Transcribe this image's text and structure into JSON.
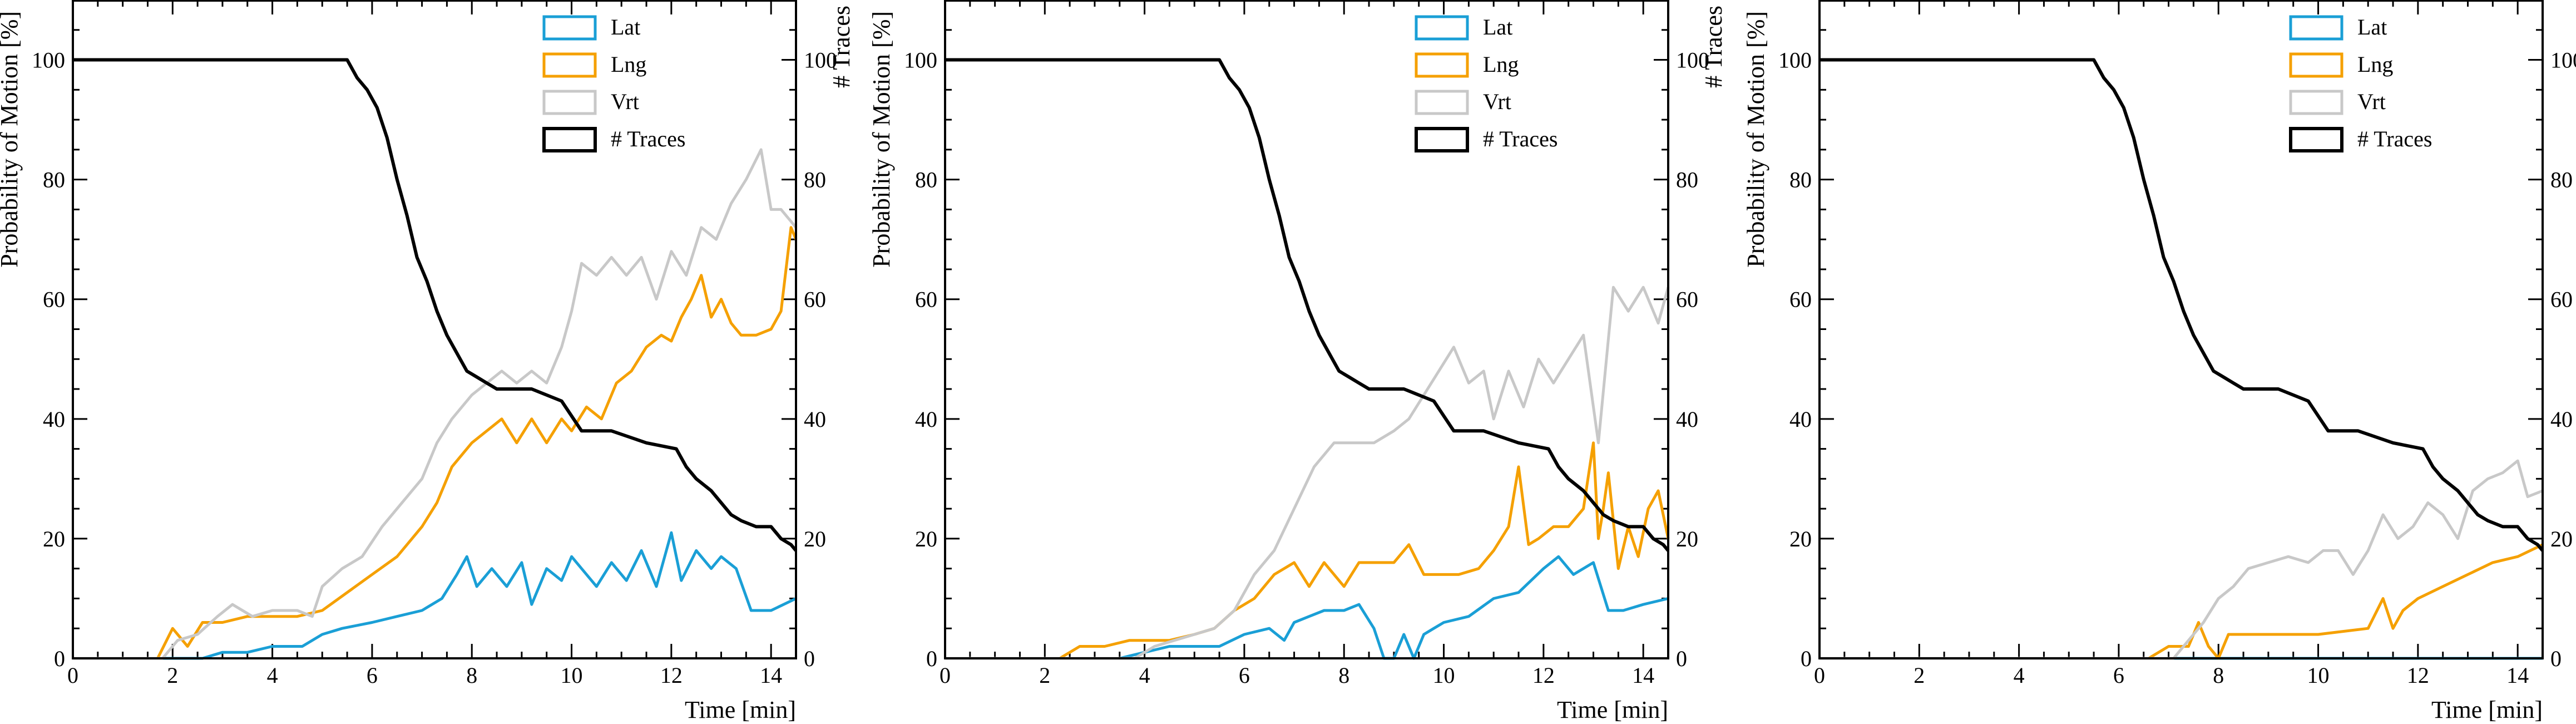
{
  "colors": {
    "Lat": "#1a9fd6",
    "Lng": "#f5a000",
    "Vrt": "#c8c8c8",
    "# Traces": "#000000"
  },
  "chart_data": [
    {
      "type": "line",
      "xlabel": "Time [min]",
      "ylabel": "Probability of Motion [%]",
      "y2label": "# Traces",
      "xlim": [
        0,
        14.5
      ],
      "ylim": [
        0,
        110
      ],
      "y2lim": [
        0,
        110
      ],
      "xticks": [
        "0",
        "2",
        "4",
        "6",
        "8",
        "10",
        "12",
        "14"
      ],
      "yticks": [
        "0",
        "20",
        "40",
        "60",
        "80",
        "100"
      ],
      "y2ticks": [
        "0",
        "20",
        "40",
        "60",
        "80",
        "100"
      ],
      "legend": "top-right",
      "series": [
        {
          "name": "Lat",
          "color": "#1a9fd6",
          "x": [
            0,
            2.6,
            3,
            3.5,
            4,
            4.6,
            5,
            5.4,
            6,
            6.5,
            7,
            7.4,
            7.7,
            7.9,
            8.1,
            8.4,
            8.7,
            9,
            9.2,
            9.5,
            9.8,
            10,
            10.2,
            10.5,
            10.8,
            11.1,
            11.4,
            11.7,
            12,
            12.2,
            12.5,
            12.8,
            13,
            13.3,
            13.6,
            14,
            14.5
          ],
          "values": [
            0,
            0,
            1,
            1,
            2,
            2,
            4,
            5,
            6,
            7,
            8,
            10,
            14,
            17,
            12,
            15,
            12,
            16,
            9,
            15,
            13,
            17,
            15,
            12,
            16,
            13,
            18,
            12,
            21,
            13,
            18,
            15,
            17,
            15,
            8,
            8,
            10
          ]
        },
        {
          "name": "Lng",
          "color": "#f5a000",
          "x": [
            0,
            1.7,
            2,
            2.3,
            2.6,
            3,
            3.5,
            4,
            4.5,
            5,
            5.5,
            6,
            6.5,
            7,
            7.3,
            7.6,
            8,
            8.3,
            8.6,
            8.9,
            9.2,
            9.5,
            9.8,
            10,
            10.3,
            10.6,
            10.9,
            11.2,
            11.5,
            11.8,
            12,
            12.2,
            12.4,
            12.6,
            12.8,
            13,
            13.2,
            13.4,
            13.7,
            14,
            14.2,
            14.4,
            14.5
          ],
          "values": [
            0,
            0,
            5,
            2,
            6,
            6,
            7,
            7,
            7,
            8,
            11,
            14,
            17,
            22,
            26,
            32,
            36,
            38,
            40,
            36,
            40,
            36,
            40,
            38,
            42,
            40,
            46,
            48,
            52,
            54,
            53,
            57,
            60,
            64,
            57,
            60,
            56,
            54,
            54,
            55,
            58,
            72,
            70
          ]
        },
        {
          "name": "Vrt",
          "color": "#c8c8c8",
          "x": [
            0,
            1.8,
            2.1,
            2.5,
            2.9,
            3.2,
            3.6,
            4,
            4.5,
            4.8,
            5,
            5.4,
            5.8,
            6.2,
            6.6,
            7,
            7.3,
            7.6,
            8,
            8.3,
            8.6,
            8.9,
            9.2,
            9.5,
            9.8,
            10,
            10.2,
            10.5,
            10.8,
            11.1,
            11.4,
            11.7,
            12,
            12.3,
            12.6,
            12.9,
            13.2,
            13.5,
            13.8,
            14,
            14.2,
            14.5
          ],
          "values": [
            0,
            0,
            3,
            4,
            7,
            9,
            7,
            8,
            8,
            7,
            12,
            15,
            17,
            22,
            26,
            30,
            36,
            40,
            44,
            46,
            48,
            46,
            48,
            46,
            52,
            58,
            66,
            64,
            67,
            64,
            67,
            60,
            68,
            64,
            72,
            70,
            76,
            80,
            85,
            75,
            75,
            72
          ]
        },
        {
          "name": "# Traces",
          "color": "#000000",
          "x": [
            0,
            5.5,
            5.7,
            5.9,
            6.1,
            6.3,
            6.5,
            6.7,
            6.9,
            7.1,
            7.3,
            7.5,
            7.7,
            7.9,
            8.1,
            8.3,
            8.5,
            9.2,
            9.8,
            10.2,
            10.8,
            11.5,
            12.1,
            12.3,
            12.5,
            12.8,
            13,
            13.2,
            13.4,
            13.7,
            14,
            14.2,
            14.4,
            14.5
          ],
          "values": [
            100,
            100,
            97,
            95,
            92,
            87,
            80,
            74,
            67,
            63,
            58,
            54,
            51,
            48,
            47,
            46,
            45,
            45,
            43,
            38,
            38,
            36,
            35,
            32,
            30,
            28,
            26,
            24,
            23,
            22,
            22,
            20,
            19,
            18
          ]
        }
      ]
    },
    {
      "type": "line",
      "xlabel": "Time [min]",
      "ylabel": "Probability of Motion [%]",
      "y2label": "# Traces",
      "xlim": [
        0,
        14.5
      ],
      "ylim": [
        0,
        110
      ],
      "y2lim": [
        0,
        110
      ],
      "xticks": [
        "0",
        "2",
        "4",
        "6",
        "8",
        "10",
        "12",
        "14"
      ],
      "yticks": [
        "0",
        "20",
        "40",
        "60",
        "80",
        "100"
      ],
      "y2ticks": [
        "0",
        "20",
        "40",
        "60",
        "80",
        "100"
      ],
      "legend": "top-right",
      "series": [
        {
          "name": "Lat",
          "color": "#1a9fd6",
          "x": [
            0,
            3.5,
            4,
            4.5,
            5,
            5.5,
            6,
            6.5,
            6.8,
            7,
            7.3,
            7.6,
            8,
            8.3,
            8.6,
            8.8,
            9,
            9.2,
            9.4,
            9.6,
            9.8,
            10,
            10.5,
            11,
            11.5,
            12,
            12.3,
            12.6,
            13,
            13.3,
            13.6,
            14,
            14.5
          ],
          "values": [
            0,
            0,
            1,
            2,
            2,
            2,
            4,
            5,
            3,
            6,
            7,
            8,
            8,
            9,
            5,
            0,
            0,
            4,
            0,
            4,
            5,
            6,
            7,
            10,
            11,
            15,
            17,
            14,
            16,
            8,
            8,
            9,
            10
          ]
        },
        {
          "name": "Lng",
          "color": "#f5a000",
          "x": [
            0,
            2.3,
            2.7,
            3.2,
            3.7,
            4,
            4.5,
            5,
            5.4,
            5.8,
            6.2,
            6.6,
            7,
            7.3,
            7.6,
            8,
            8.3,
            8.7,
            9,
            9.3,
            9.6,
            10,
            10.3,
            10.7,
            11,
            11.3,
            11.5,
            11.7,
            11.9,
            12.2,
            12.5,
            12.8,
            13,
            13.1,
            13.2,
            13.3,
            13.5,
            13.7,
            13.9,
            14.1,
            14.3,
            14.5
          ],
          "values": [
            0,
            0,
            2,
            2,
            3,
            3,
            3,
            4,
            5,
            8,
            10,
            14,
            16,
            12,
            16,
            12,
            16,
            16,
            16,
            19,
            14,
            14,
            14,
            15,
            18,
            22,
            32,
            19,
            20,
            22,
            22,
            25,
            36,
            20,
            25,
            31,
            15,
            22,
            17,
            25,
            28,
            20
          ]
        },
        {
          "name": "Vrt",
          "color": "#c8c8c8",
          "x": [
            0,
            3.8,
            4.2,
            4.6,
            5,
            5.4,
            5.8,
            6.2,
            6.6,
            7,
            7.4,
            7.8,
            8.2,
            8.6,
            9,
            9.3,
            9.6,
            9.9,
            10.2,
            10.5,
            10.8,
            11,
            11.3,
            11.6,
            11.9,
            12.2,
            12.5,
            12.8,
            13.1,
            13.4,
            13.7,
            14,
            14.3,
            14.5
          ],
          "values": [
            0,
            0,
            2,
            3,
            4,
            5,
            8,
            14,
            18,
            25,
            32,
            36,
            36,
            36,
            38,
            40,
            44,
            48,
            52,
            46,
            48,
            40,
            48,
            42,
            50,
            46,
            50,
            54,
            36,
            62,
            58,
            62,
            56,
            62
          ]
        },
        {
          "name": "# Traces",
          "color": "#000000",
          "x": [
            0,
            5.5,
            5.7,
            5.9,
            6.1,
            6.3,
            6.5,
            6.7,
            6.9,
            7.1,
            7.3,
            7.5,
            7.7,
            7.9,
            8.1,
            8.3,
            8.5,
            9.2,
            9.8,
            10.2,
            10.8,
            11.5,
            12.1,
            12.3,
            12.5,
            12.8,
            13,
            13.2,
            13.4,
            13.7,
            14,
            14.2,
            14.4,
            14.5
          ],
          "values": [
            100,
            100,
            97,
            95,
            92,
            87,
            80,
            74,
            67,
            63,
            58,
            54,
            51,
            48,
            47,
            46,
            45,
            45,
            43,
            38,
            38,
            36,
            35,
            32,
            30,
            28,
            26,
            24,
            23,
            22,
            22,
            20,
            19,
            18
          ]
        }
      ]
    },
    {
      "type": "line",
      "xlabel": "Time [min]",
      "ylabel": "Probability of Motion [%]",
      "y2label": "# Traces",
      "xlim": [
        0,
        14.5
      ],
      "ylim": [
        0,
        110
      ],
      "y2lim": [
        0,
        110
      ],
      "xticks": [
        "0",
        "2",
        "4",
        "6",
        "8",
        "10",
        "12",
        "14"
      ],
      "yticks": [
        "0",
        "20",
        "40",
        "60",
        "80",
        "100"
      ],
      "y2ticks": [
        "0",
        "20",
        "40",
        "60",
        "80",
        "100"
      ],
      "legend": "top-right",
      "series": [
        {
          "name": "Lat",
          "color": "#1a9fd6",
          "x": [
            0,
            14.5
          ],
          "values": [
            0,
            0
          ]
        },
        {
          "name": "Lng",
          "color": "#f5a000",
          "x": [
            0,
            6.6,
            7,
            7.4,
            7.6,
            7.8,
            8,
            8.2,
            8.4,
            9,
            10,
            11,
            11.3,
            11.5,
            11.7,
            12,
            12.5,
            13,
            13.5,
            14,
            14.5
          ],
          "values": [
            0,
            0,
            2,
            2,
            6,
            2,
            0,
            4,
            4,
            4,
            4,
            5,
            10,
            5,
            8,
            10,
            12,
            14,
            16,
            17,
            19
          ]
        },
        {
          "name": "Vrt",
          "color": "#c8c8c8",
          "x": [
            0,
            7.1,
            7.4,
            7.7,
            8,
            8.3,
            8.6,
            9,
            9.4,
            9.8,
            10.1,
            10.4,
            10.7,
            11,
            11.3,
            11.6,
            11.9,
            12.2,
            12.5,
            12.8,
            13.1,
            13.4,
            13.7,
            14,
            14.2,
            14.5
          ],
          "values": [
            0,
            0,
            3,
            6,
            10,
            12,
            15,
            16,
            17,
            16,
            18,
            18,
            14,
            18,
            24,
            20,
            22,
            26,
            24,
            20,
            28,
            30,
            31,
            33,
            27,
            28
          ]
        },
        {
          "name": "# Traces",
          "color": "#000000",
          "x": [
            0,
            5.5,
            5.7,
            5.9,
            6.1,
            6.3,
            6.5,
            6.7,
            6.9,
            7.1,
            7.3,
            7.5,
            7.7,
            7.9,
            8.1,
            8.3,
            8.5,
            9.2,
            9.8,
            10.2,
            10.8,
            11.5,
            12.1,
            12.3,
            12.5,
            12.8,
            13,
            13.2,
            13.4,
            13.7,
            14,
            14.2,
            14.4,
            14.5
          ],
          "values": [
            100,
            100,
            97,
            95,
            92,
            87,
            80,
            74,
            67,
            63,
            58,
            54,
            51,
            48,
            47,
            46,
            45,
            45,
            43,
            38,
            38,
            36,
            35,
            32,
            30,
            28,
            26,
            24,
            23,
            22,
            22,
            20,
            19,
            18
          ]
        }
      ]
    }
  ]
}
